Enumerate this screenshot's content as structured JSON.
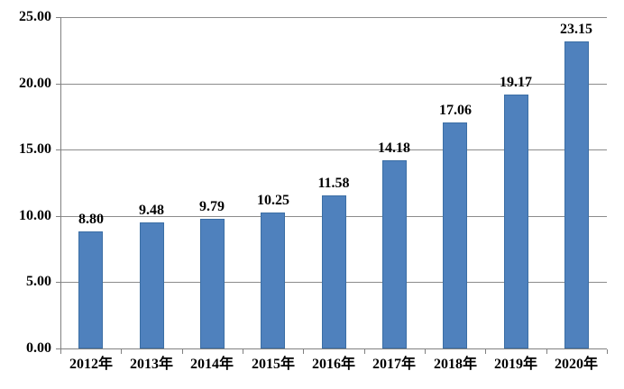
{
  "chart_data": {
    "type": "bar",
    "title": "",
    "xlabel": "",
    "ylabel": "",
    "categories": [
      "2012年",
      "2013年",
      "2014年",
      "2015年",
      "2016年",
      "2017年",
      "2018年",
      "2019年",
      "2020年"
    ],
    "values": [
      8.8,
      9.48,
      9.79,
      10.25,
      11.58,
      14.18,
      17.06,
      19.17,
      23.15
    ],
    "value_labels": [
      "8.80",
      "9.48",
      "9.79",
      "10.25",
      "11.58",
      "14.18",
      "17.06",
      "19.17",
      "23.15"
    ],
    "yticks": [
      0,
      5,
      10,
      15,
      20,
      25
    ],
    "ytick_labels": [
      "0.00",
      "5.00",
      "10.00",
      "15.00",
      "20.00",
      "25.00"
    ],
    "ylim": [
      0,
      25
    ],
    "grid": true,
    "legend": "none",
    "colors": {
      "bar_fill": "#4f81bd",
      "bar_border": "#3b6ea5",
      "gridline": "#8c8c8c",
      "axis": "#808080",
      "text": "#000000",
      "background": "#ffffff"
    }
  }
}
